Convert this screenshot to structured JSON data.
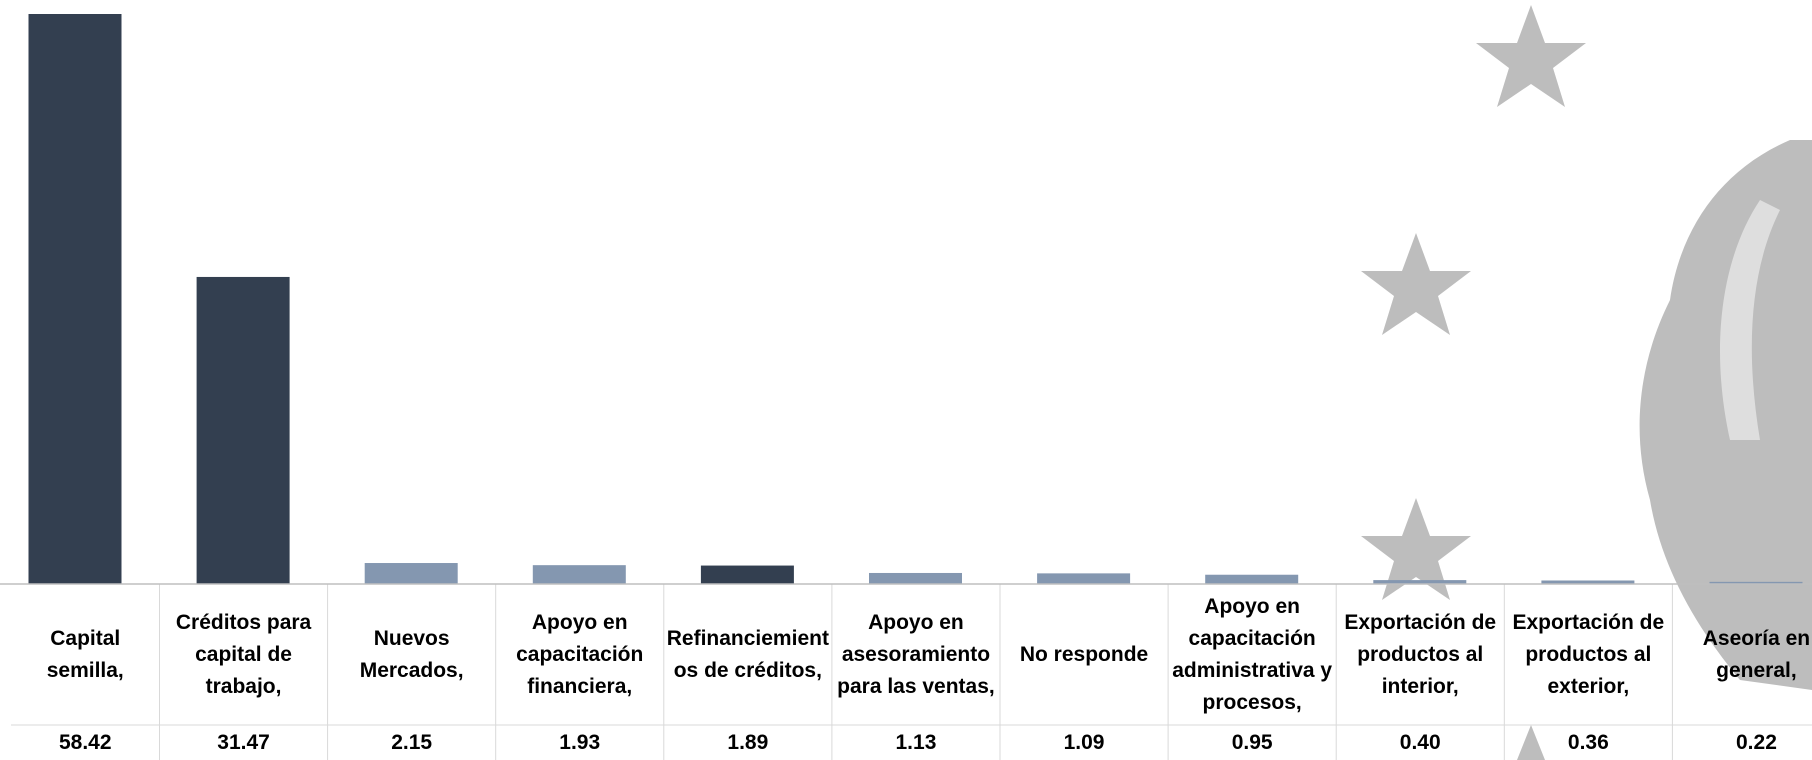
{
  "chart_data": {
    "type": "bar",
    "categories": [
      "Capital semilla,",
      "Créditos para capital de trabajo,",
      "Nuevos Mercados,",
      "Apoyo en capacitación financiera,",
      "Refinanciemientos de créditos,",
      "Apoyo en asesoramiento para las ventas,",
      "No responde",
      "Apoyo en capacitación administrativa y procesos,",
      "Exportación de productos al interior,",
      "Exportación de productos al exterior,",
      "Aseoría en general,"
    ],
    "values": [
      58.42,
      31.47,
      2.15,
      1.93,
      1.89,
      1.13,
      1.09,
      0.95,
      0.4,
      0.36,
      0.22
    ],
    "value_labels": [
      "58.42",
      "31.47",
      "2.15",
      "1.93",
      "1.89",
      "1.13",
      "1.09",
      "0.95",
      "0.40",
      "0.36",
      "0.22"
    ],
    "colors": [
      "#333f50",
      "#333f50",
      "#8497b0",
      "#8497b0",
      "#333f50",
      "#8497b0",
      "#8497b0",
      "#8497b0",
      "#8497b0",
      "#8497b0",
      "#8497b0"
    ]
  }
}
